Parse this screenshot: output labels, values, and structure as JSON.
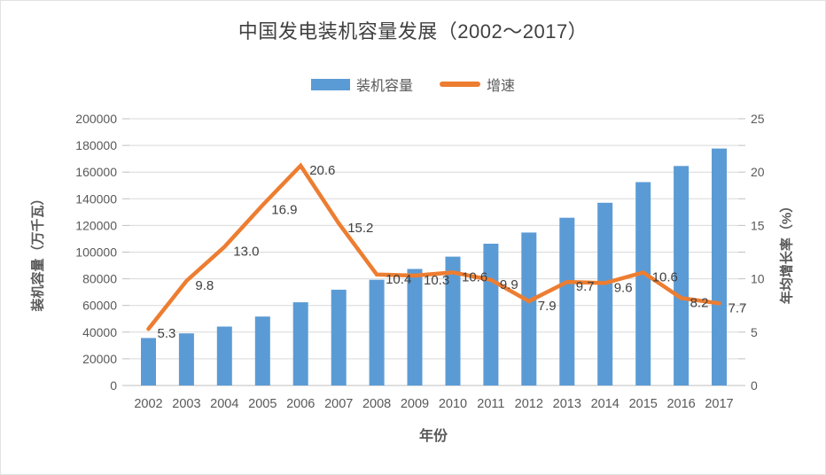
{
  "chart": {
    "title": "中国发电装机容量发展（2002～2017）"
  },
  "colors": {
    "bar": "#5B9BD5",
    "line": "#ED7D31",
    "grid": "#D9D9D9",
    "axis_line": "#BFBFBF",
    "tick_text": "#595959",
    "data_label_text": "#404040",
    "title_text": "#404040"
  },
  "chart_data": {
    "type": "bar+line combo",
    "title": "中国发电装机容量发展（2002～2017）",
    "categories": [
      "2002",
      "2003",
      "2004",
      "2005",
      "2006",
      "2007",
      "2008",
      "2009",
      "2010",
      "2011",
      "2012",
      "2013",
      "2014",
      "2015",
      "2016",
      "2017"
    ],
    "series": [
      {
        "name": "装机容量",
        "type": "bar",
        "axis": "left",
        "color": "#5B9BD5",
        "values": [
          35600,
          39100,
          44200,
          51700,
          62400,
          71800,
          79300,
          87400,
          96600,
          106300,
          114700,
          125800,
          137000,
          152500,
          164600,
          177700
        ]
      },
      {
        "name": "增速",
        "type": "line",
        "axis": "right",
        "color": "#ED7D31",
        "values": [
          5.3,
          9.8,
          13.0,
          16.9,
          20.6,
          15.2,
          10.4,
          10.3,
          10.6,
          9.9,
          7.9,
          9.7,
          9.6,
          10.6,
          8.2,
          7.7
        ],
        "value_labels": [
          "5.3",
          "9.8",
          "13.0",
          "16.9",
          "20.6",
          "15.2",
          "10.4",
          "10.3",
          "10.6",
          "9.9",
          "7.9",
          "9.7",
          "9.6",
          "10.6",
          "8.2",
          "7.7"
        ]
      }
    ],
    "xlabel": "年份",
    "ylabel_left": "装机容量（万千瓦）",
    "ylabel_right": "年均增长率（%）",
    "y_left_axis": {
      "min": 0,
      "max": 200000,
      "step": 20000,
      "tick_labels": [
        "0",
        "20000",
        "40000",
        "60000",
        "80000",
        "100000",
        "120000",
        "140000",
        "160000",
        "180000",
        "200000"
      ]
    },
    "y_right_axis": {
      "min": 0,
      "max": 25,
      "step": 5,
      "tick_labels": [
        "0",
        "5",
        "10",
        "15",
        "20",
        "25"
      ]
    },
    "grid": "horizontal",
    "legend_position": "top"
  }
}
